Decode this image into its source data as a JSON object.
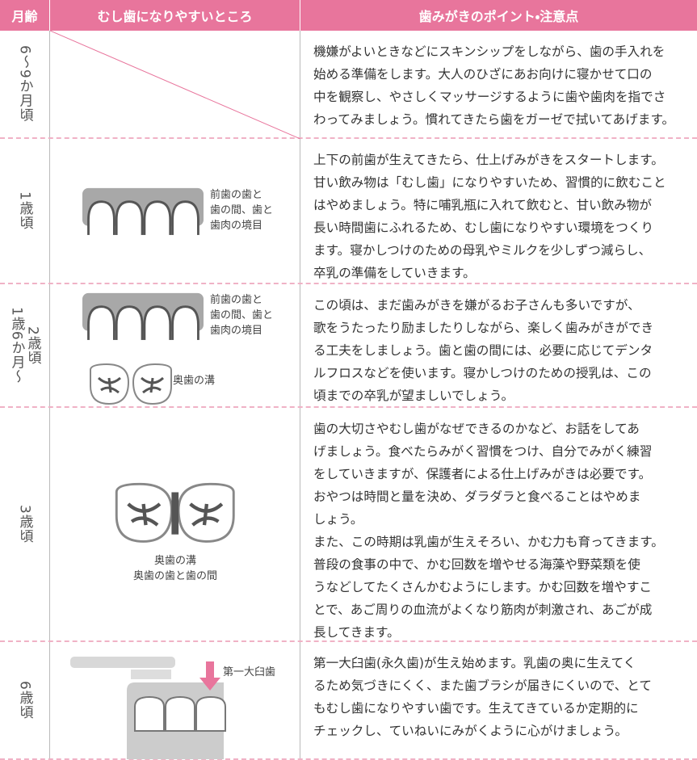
{
  "header": {
    "age": "月齢",
    "area": "むし歯になりやすいところ",
    "points": "歯みがきのポイント・注意点"
  },
  "rows": [
    {
      "age": [
        "6〜9か月頃"
      ],
      "labels": [],
      "text": [
        "機嫌がよいときなどにスキンシップをしながら、歯の手入れを",
        "始める準備をします。大人のひざにあお向けに寝かせて口の",
        "中を観察し、やさしくマッサージするように歯や歯肉を指でさ",
        "わってみましょう。慣れてきたら歯をガーゼで拭いてあげます。"
      ]
    },
    {
      "age": [
        "1歳頃"
      ],
      "labels": [
        [
          "前歯の歯と",
          "歯の間、歯と",
          "歯肉の境目"
        ]
      ],
      "text": [
        "上下の前歯が生えてきたら、仕上げみがきをスタートします。",
        "甘い飲み物は「むし歯」になりやすいため、習慣的に飲むこと",
        "はやめましょう。特に哺乳瓶に入れて飲むと、甘い飲み物が",
        "長い時間歯にふれるため、むし歯になりやすい環境をつくり",
        "ます。寝かしつけのための母乳やミルクを少しずつ減らし、",
        "卒乳の準備をしていきます。"
      ]
    },
    {
      "age": [
        "1歳6か月〜",
        "2歳頃"
      ],
      "labels": [
        [
          "前歯の歯と",
          "歯の間、歯と",
          "歯肉の境目"
        ],
        [
          "奥歯の溝"
        ]
      ],
      "text": [
        "この頃は、まだ歯みがきを嫌がるお子さんも多いですが、",
        "歌をうたったり励ましたりしながら、楽しく歯みがきができ",
        "る工夫をしましょう。歯と歯の間には、必要に応じてデンタ",
        "ルフロスなどを使います。寝かしつけのための授乳は、この",
        "頃までの卒乳が望ましいでしょう。"
      ]
    },
    {
      "age": [
        "3歳頃"
      ],
      "labels": [
        [
          "奥歯の溝",
          "奥歯の歯と歯の間"
        ]
      ],
      "text": [
        "歯の大切さやむし歯がなぜできるのかなど、お話をしてあ",
        "げましょう。食べたらみがく習慣をつけ、自分でみがく練習",
        "をしていきますが、保護者による仕上げみがきは必要です。",
        "おやつは時間と量を決め、ダラダラと食べることはやめま",
        "しょう。",
        "また、この時期は乳歯が生えそろい、かむ力も育ってきます。",
        "普段の食事の中で、かむ回数を増やせる海藻や野菜類を使",
        "うなどしてたくさんかむようにします。かむ回数を増やすこ",
        "とで、あご周りの血流がよくなり筋肉が刺激され、あごが成",
        "長してきます。"
      ]
    },
    {
      "age": [
        "6歳頃"
      ],
      "labels": [
        [
          "第一大臼歯"
        ]
      ],
      "text": [
        "第一大臼歯(永久歯)が生え始めます。乳歯の奥に生えてく",
        "るため気づきにくく、また歯ブラシが届きにくいので、とて",
        "もむし歯になりやすい歯です。生えてきているか定期的に",
        "チェックし、ていねいにみがくように心がけましょう。"
      ]
    }
  ]
}
